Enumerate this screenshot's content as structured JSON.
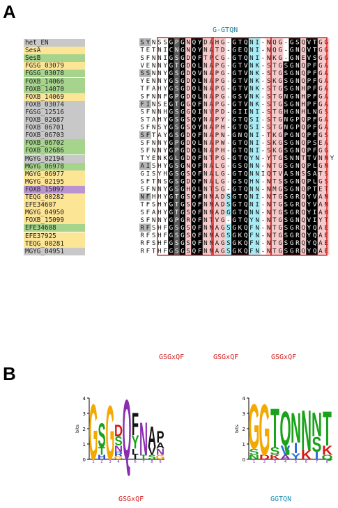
{
  "panels": {
    "a": "A",
    "b": "B"
  },
  "alignment": {
    "top_motif": "G-GTQN",
    "bottom_motifs": [
      "GSGxQF",
      "GSGxQF",
      "GSGxQF"
    ],
    "rows": [
      {
        "label": "het_EN",
        "color": "#c8c8c8",
        "seq": "SYNSSGPGNQYDAHG-GTQNI-NQG-GSQVTGG"
      },
      {
        "label": "SesA",
        "color": "#fde596",
        "seq": "TETNICNGNQYNATD-GEQNI-NQG-GNQVTGG"
      },
      {
        "label": "SesB",
        "color": "#a6d48c",
        "seq": "SFNNIGSGDQFTPCG-GTQNI-NKG-GNEVSGG"
      },
      {
        "label": "FGSG_03079",
        "color": "#fde596",
        "seq": "VENNYGTGDQLNAPG-GTVNK-STGSGNQPFGA"
      },
      {
        "label": "FGSG_03078",
        "color": "#a6d48c",
        "seq": "SSNNYGSGDQVNAPG-GTVNK-STGSGNQPFGA"
      },
      {
        "label": "FOXB_14066",
        "color": "#a6d48c",
        "seq": "YENNYGSGDQLNAPG-GTVNK-SKGSGNQPFGA"
      },
      {
        "label": "FOXB_14070",
        "color": "#a6d48c",
        "seq": "TFAHYGSGDQLNAPG-GTVNK-STGSGNHPFGA"
      },
      {
        "label": "FOXB_14069",
        "color": "#fde596",
        "seq": "SFNNFGPGDQLNAPG-GSVNK-STGNGNHPFGA"
      },
      {
        "label": "FOXB_03074",
        "color": "#c8c8c8",
        "seq": "FINSEGTGGQFNAPG-GTVNK-STGSGNHPFGA"
      },
      {
        "label": "FGSG_12516",
        "color": "#c8c8c8",
        "seq": "SFNNHGSGGQINVPD-GIINI-STGHGNHLNGS"
      },
      {
        "label": "FOXB_02687",
        "color": "#c8c8c8",
        "seq": "STAHYGSGSQYNAPY-GTQSI-STGNGPQPFGA"
      },
      {
        "label": "FOXB_06701",
        "color": "#c8c8c8",
        "seq": "SFNSYGSGSQYNAPH-GTQSI-STGNGPQPFGA"
      },
      {
        "label": "FOXB_06703",
        "color": "#c8c8c8",
        "seq": "SFTAYGSGDQFNAPN-GNQNI-TKGPGNQPFGS"
      },
      {
        "label": "FOXB_06702",
        "color": "#a6d48c",
        "seq": "SFNNYGPGDQLNAPW-GTQNI-SKGSGNQPSEA"
      },
      {
        "label": "FOXB_02686",
        "color": "#a6d48c",
        "seq": "SFNNYGPGDQLNAPH-GTQNI-SKGSGNQPFGG"
      },
      {
        "label": "MGYG_02194",
        "color": "#c8c8c8",
        "seq": "TYENKGLGDQFNTPG-GTQYN-YTGSNNTTVNNY"
      },
      {
        "label": "MGYG_06978",
        "color": "#a6d48c",
        "seq": "AISHYGSGNQFNALG-GSQNN-NTGSGNQPLGN"
      },
      {
        "label": "MGYG_06977",
        "color": "#fde596",
        "seq": "GISYHGSGSQFNALG-GTQNNIQTVASNSSATS"
      },
      {
        "label": "MGYG_02195",
        "color": "#fde596",
        "seq": "SFTNSGSGDQFNALG-GSQHN-NTSSGNQPLGS"
      },
      {
        "label": "FOXB_15097",
        "color": "#b994d0",
        "seq": "SFNNYGSGHQLNTSG-GTQNN-NMGSGNQPTET"
      },
      {
        "label": "TEQG_00282",
        "color": "#fde596",
        "seq": "NFHHYGTGSQFNNADSGTQNI-NTGSGRQYVAN"
      },
      {
        "label": "EFE34607",
        "color": "#fde596",
        "seq": "TFSHYGTGSQFNNADSGTQNI-NTGSGRQYVAN"
      },
      {
        "label": "MGYG_04950",
        "color": "#fde596",
        "seq": "SFAHYGTGSQFNNADGGTQNN-NTGSGRQYIAH"
      },
      {
        "label": "FOXB_15099",
        "color": "#fde596",
        "seq": "SFNNYGPGRQFNTVG-GTQYN-NTGSGNQVIYT"
      },
      {
        "label": "EFE34608",
        "color": "#a6d48c",
        "seq": "RFSHFGSGSQFNNAGSGKQFN-NTGSGRQYQAE"
      },
      {
        "label": "EFE37925",
        "color": "#fde596",
        "seq": "RFSHFGSGSQFNNAGSGKQFN-NTGSGRQYQAE"
      },
      {
        "label": "TEQG_00281",
        "color": "#fde596",
        "seq": "RFSHFGSGSQFNNAGSGKQFN-NTGSGRQYQAE"
      },
      {
        "label": "MGYG_04951",
        "color": "#c8c8c8",
        "seq": "RFTHFGSGSQFNNAGSGKQFN-NTGSGRQYQAE"
      }
    ]
  },
  "logos": {
    "ylabel": "bits",
    "yticks": [
      "0",
      "1",
      "2",
      "3",
      "4"
    ],
    "logo1": {
      "caption": "GSGxQF",
      "positions": [
        "1",
        "2",
        "3",
        "4",
        "5",
        "6",
        "7",
        "8",
        "9"
      ],
      "stacks": [
        [
          [
            "G",
            3.7
          ]
        ],
        [
          [
            "S",
            1.6
          ],
          [
            "T",
            0.5
          ],
          [
            "H",
            0.3
          ]
        ],
        [
          [
            "G",
            3.6
          ]
        ],
        [
          [
            "D",
            0.8
          ],
          [
            "S",
            0.6
          ],
          [
            "N",
            0.4
          ],
          [
            "R",
            0.3
          ],
          [
            "G",
            0.2
          ]
        ],
        [
          [
            "Q",
            4.0
          ]
        ],
        [
          [
            "F",
            1.5
          ],
          [
            "Y",
            0.9
          ],
          [
            "L",
            0.4
          ],
          [
            "I",
            0.3
          ]
        ],
        [
          [
            "N",
            2.2
          ],
          [
            "T",
            0.3
          ]
        ],
        [
          [
            "A",
            1.4
          ],
          [
            "V",
            0.5
          ],
          [
            "S",
            0.3
          ]
        ],
        [
          [
            "P",
            0.8
          ],
          [
            "N",
            0.4
          ],
          [
            "A",
            0.4
          ],
          [
            "G",
            0.3
          ]
        ]
      ]
    },
    "logo2": {
      "caption": "GGTQN",
      "positions": [
        "1",
        "2",
        "3",
        "4",
        "5",
        "6",
        "7",
        "8"
      ],
      "stacks": [
        [
          [
            "G",
            3.0
          ],
          [
            "S",
            0.4
          ],
          [
            "N",
            0.3
          ]
        ],
        [
          [
            "G",
            3.4
          ],
          [
            "D",
            0.3
          ]
        ],
        [
          [
            "T",
            2.6
          ],
          [
            "S",
            0.5
          ],
          [
            "K",
            0.3
          ]
        ],
        [
          [
            "Q",
            2.3
          ],
          [
            "V",
            0.6
          ],
          [
            "A",
            0.3
          ]
        ],
        [
          [
            "N",
            2.0
          ],
          [
            "I",
            0.7
          ],
          [
            "Y",
            0.4
          ]
        ],
        [
          [
            "N",
            2.7
          ],
          [
            "K",
            0.6
          ]
        ],
        [
          [
            "N",
            1.6
          ],
          [
            "S",
            1.0
          ],
          [
            "I",
            0.5
          ]
        ],
        [
          [
            "T",
            2.3
          ],
          [
            "K",
            0.6
          ],
          [
            "Q",
            0.3
          ]
        ]
      ]
    }
  },
  "colors": {
    "frame": "#d62020",
    "cyan": "#a7ecf4",
    "pink": "#f6caca",
    "black": "#000000",
    "darkgray": "#5a5a5a",
    "lightgray": "#b5b5b5"
  }
}
